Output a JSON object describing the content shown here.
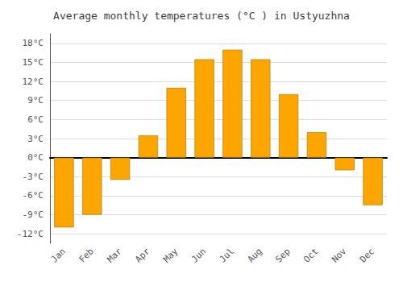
{
  "chart_data": {
    "type": "bar",
    "title": "Average monthly temperatures (°C ) in Ustyuzhna",
    "categories": [
      "Jan",
      "Feb",
      "Mar",
      "Apr",
      "May",
      "Jun",
      "Jul",
      "Aug",
      "Sep",
      "Oct",
      "Nov",
      "Dec"
    ],
    "values": [
      -11,
      -9,
      -3.5,
      3.5,
      11,
      15.5,
      17,
      15.5,
      10,
      4,
      -2,
      -7.5
    ],
    "color": "#FFA500",
    "ylim": [
      -13.5,
      19.5
    ],
    "yticks": [
      {
        "value": -12,
        "label": "-12°C"
      },
      {
        "value": -9,
        "label": "-9°C"
      },
      {
        "value": -6,
        "label": "-6°C"
      },
      {
        "value": -3,
        "label": "-3°C"
      },
      {
        "value": 0,
        "label": "0°C"
      },
      {
        "value": 3,
        "label": "3°C"
      },
      {
        "value": 6,
        "label": "6°C"
      },
      {
        "value": 9,
        "label": "9°C"
      },
      {
        "value": 12,
        "label": "12°C"
      },
      {
        "value": 15,
        "label": "15°C"
      },
      {
        "value": 18,
        "label": "18°C"
      }
    ],
    "grid": true
  }
}
